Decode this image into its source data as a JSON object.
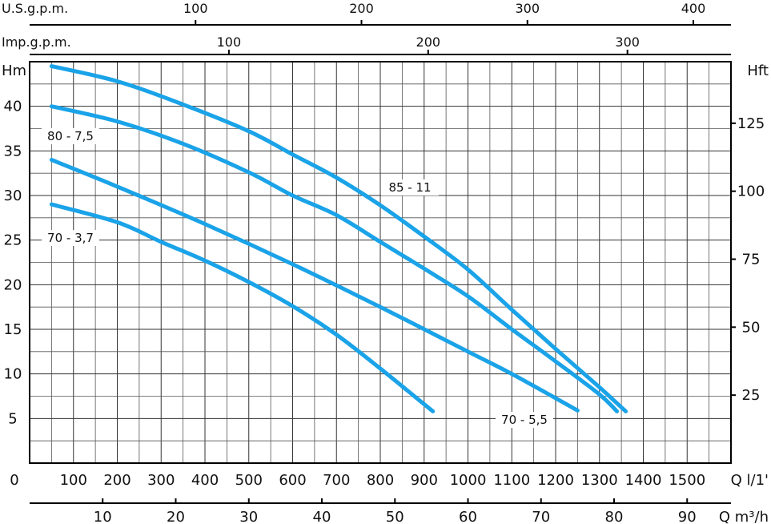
{
  "chart_data": {
    "type": "line",
    "scales": {
      "us_gpm": {
        "label": "U.S.g.p.m.",
        "ticks": [
          100,
          200,
          300,
          400
        ]
      },
      "imp_gpm": {
        "label": "Imp.g.p.m.",
        "ticks": [
          100,
          200,
          300
        ]
      },
      "left_y": {
        "label": "Hm",
        "ticks": [
          5,
          10,
          15,
          20,
          25,
          30,
          35,
          40
        ],
        "ylim": [
          0,
          45
        ]
      },
      "right_y": {
        "label": "Hft",
        "ticks": [
          25,
          50,
          75,
          100,
          125
        ]
      },
      "q_lmin": {
        "label": "Q  l/1'",
        "ticks": [
          0,
          100,
          200,
          300,
          400,
          500,
          600,
          700,
          800,
          900,
          1000,
          1100,
          1200,
          1300,
          1400,
          1500
        ],
        "xlim": [
          0,
          1600
        ]
      },
      "q_m3h": {
        "label": "Q  m³/h",
        "ticks": [
          10,
          20,
          30,
          40,
          50,
          60,
          70,
          80,
          90
        ]
      }
    },
    "series": [
      {
        "name": "85 - 11",
        "x": [
          50,
          200,
          350,
          500,
          600,
          700,
          800,
          900,
          1000,
          1100,
          1200,
          1300,
          1360
        ],
        "y": [
          44.5,
          42.8,
          40.2,
          37.2,
          34.6,
          32,
          28.9,
          25.4,
          21.7,
          17.2,
          12.8,
          8.5,
          5.8
        ]
      },
      {
        "name": "80 - 7,5",
        "x": [
          50,
          200,
          350,
          500,
          600,
          700,
          800,
          900,
          1000,
          1100,
          1200,
          1300,
          1340
        ],
        "y": [
          40,
          38.3,
          35.8,
          32.6,
          30,
          27.8,
          24.8,
          21.8,
          18.7,
          15,
          11.4,
          7.7,
          5.8
        ]
      },
      {
        "name": "70 - 5,5",
        "x": [
          50,
          200,
          400,
          600,
          800,
          1000,
          1100,
          1250
        ],
        "y": [
          34,
          31,
          26.8,
          22.3,
          17.5,
          12.5,
          10,
          5.9
        ]
      },
      {
        "name": "70 - 3,7",
        "x": [
          50,
          200,
          300,
          400,
          500,
          600,
          700,
          800,
          900,
          920
        ],
        "y": [
          29,
          27,
          24.8,
          22.7,
          20.3,
          17.6,
          14.4,
          10.6,
          6.6,
          5.8
        ]
      }
    ]
  }
}
